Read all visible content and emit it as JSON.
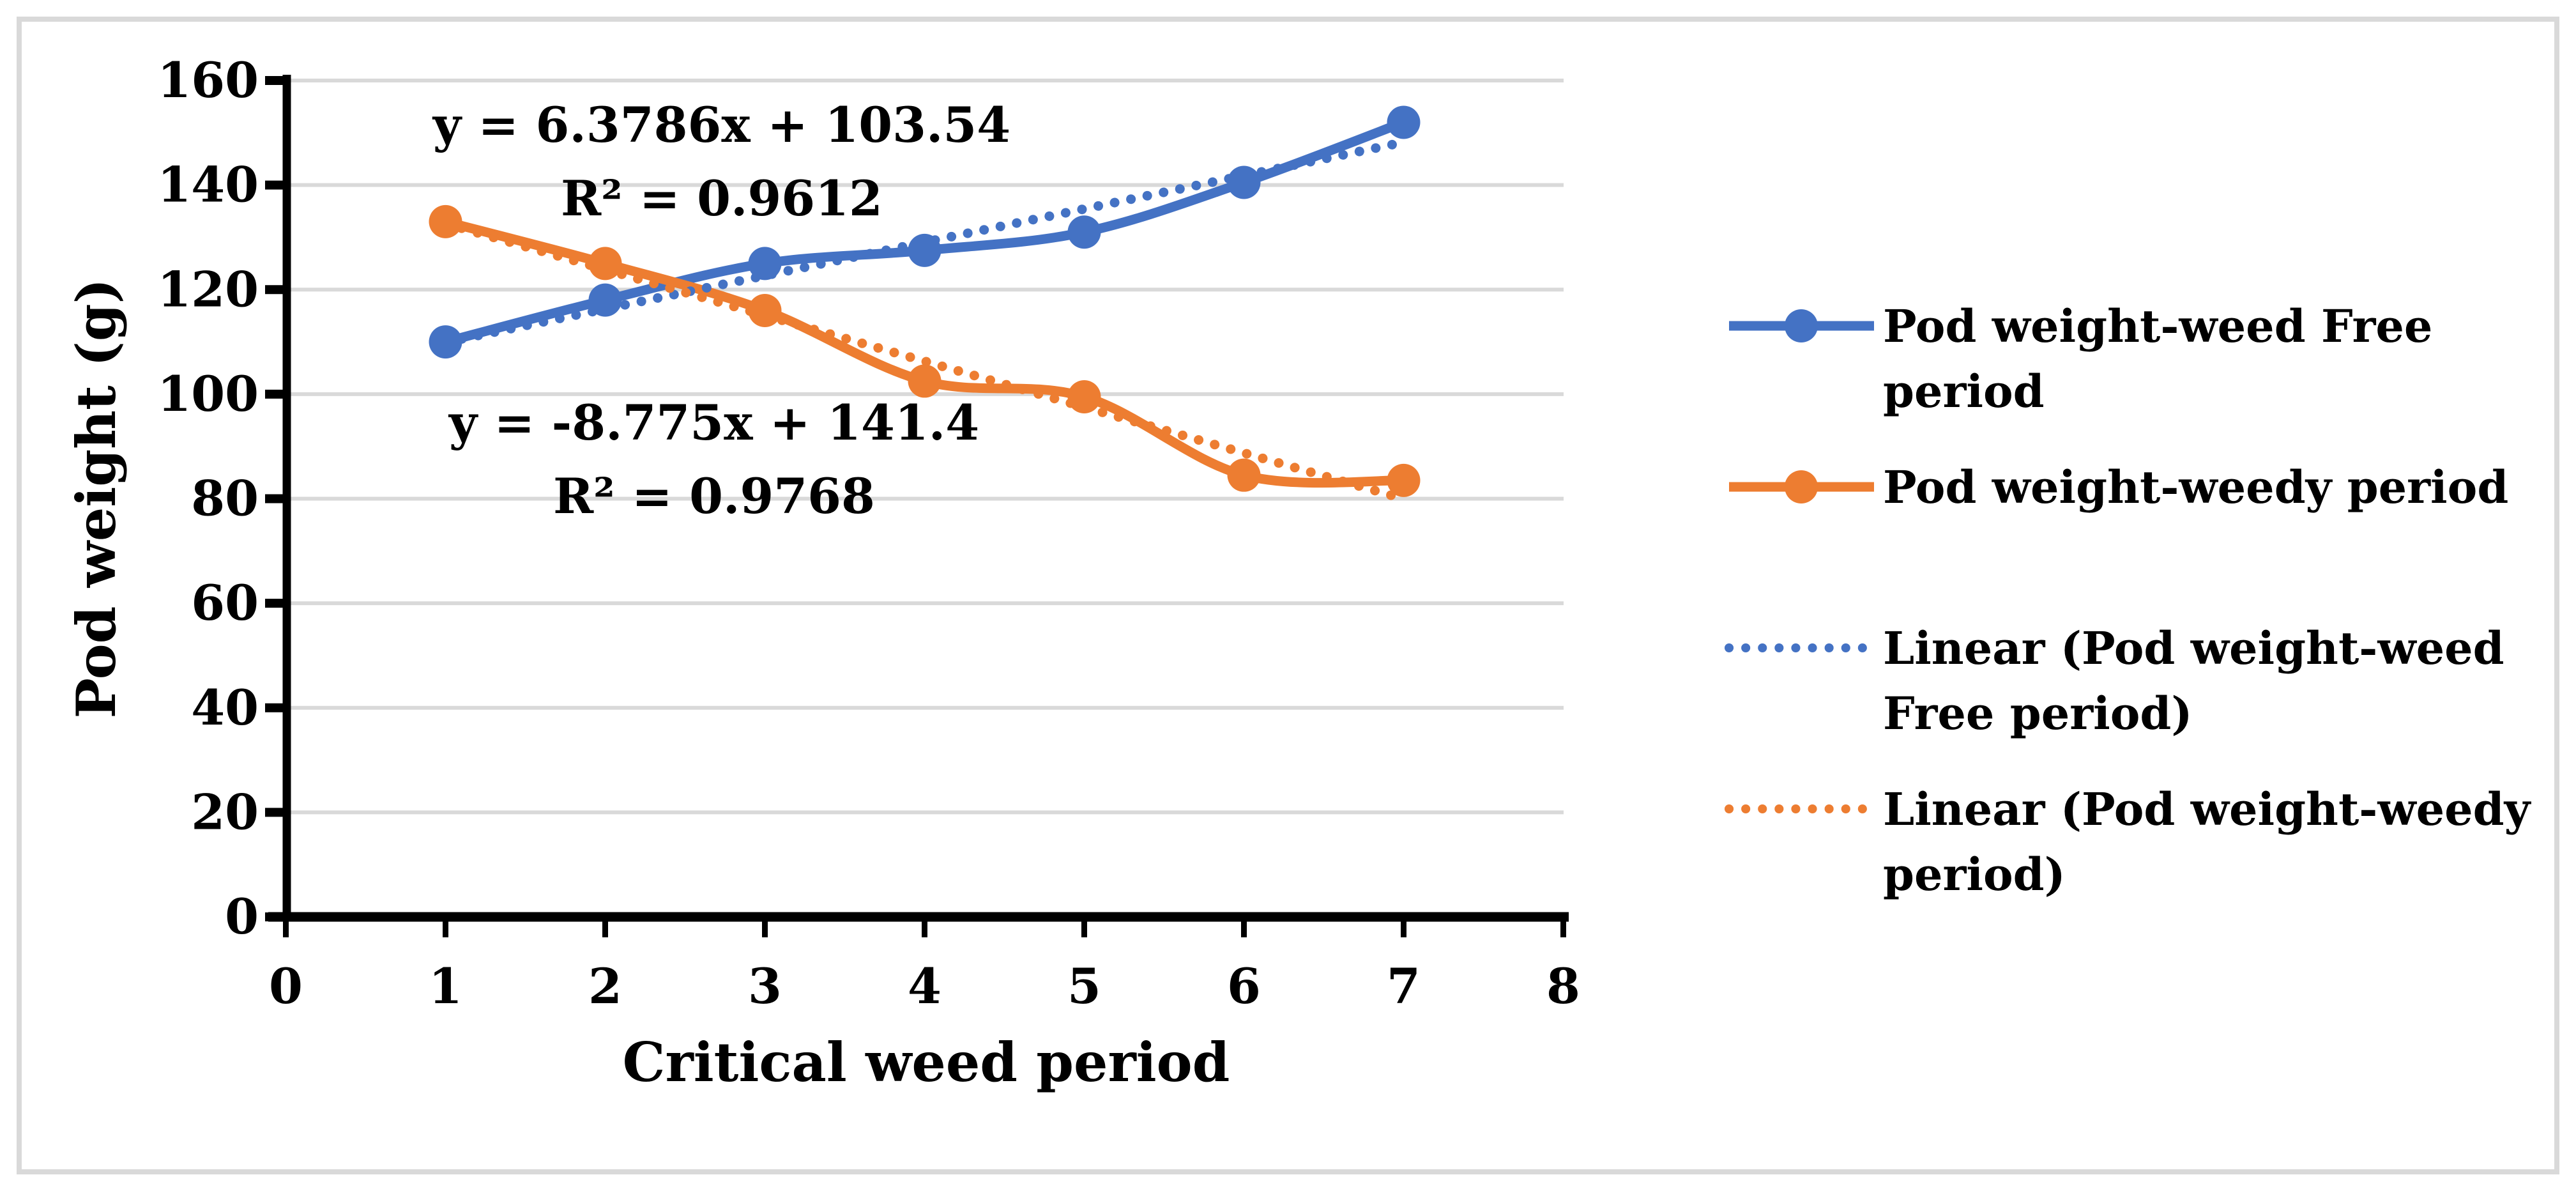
{
  "chart_data": {
    "type": "line",
    "title": "",
    "xlabel": "Critical weed period",
    "ylabel": "Pod weight (g)",
    "x": [
      1,
      2,
      3,
      4,
      5,
      6,
      7
    ],
    "xlim": [
      0,
      8
    ],
    "ylim": [
      0,
      160
    ],
    "x_ticks": [
      "0",
      "1",
      "2",
      "3",
      "4",
      "5",
      "6",
      "7",
      "8"
    ],
    "y_ticks": [
      "0",
      "20",
      "40",
      "60",
      "80",
      "100",
      "120",
      "140",
      "160"
    ],
    "grid": "horizontal",
    "legend_position": "right",
    "series": [
      {
        "name": "Pod weight-weed Free period",
        "color": "#4472C4",
        "line_style": "solid-smooth",
        "marker": "circle",
        "values": [
          110,
          118,
          125,
          127.5,
          131,
          140.5,
          152
        ]
      },
      {
        "name": "Pod weight-weedy period",
        "color": "#ED7D31",
        "line_style": "solid-smooth",
        "marker": "circle",
        "values": [
          133,
          125,
          116,
          102.5,
          99.5,
          84.5,
          83.5
        ]
      }
    ],
    "trendlines": [
      {
        "name": "Linear (Pod weight-weed Free period)",
        "color": "#4472C4",
        "slope": 6.3786,
        "intercept": 103.54,
        "r2": 0.9612,
        "x_range": [
          1,
          7
        ]
      },
      {
        "name": "Linear (Pod weight-weedy period)",
        "color": "#ED7D31",
        "slope": -8.775,
        "intercept": 141.4,
        "r2": 0.9768,
        "x_range": [
          1,
          7
        ]
      }
    ],
    "annotations": [
      {
        "lines": [
          "y = 6.3786x + 103.54",
          "R² = 0.9612"
        ],
        "anchor": "blue-trendline-label"
      },
      {
        "lines": [
          "y = -8.775x + 141.4",
          "R² = 0.9768"
        ],
        "anchor": "orange-trendline-label"
      }
    ],
    "legend": [
      {
        "label_lines": [
          "Pod weight-weed Free",
          "period"
        ],
        "color": "#4472C4",
        "line_style": "solid",
        "marker": "circle"
      },
      {
        "label_lines": [
          "Pod weight-weedy period"
        ],
        "color": "#ED7D31",
        "line_style": "solid",
        "marker": "circle"
      },
      {
        "label_lines": [
          "Linear (Pod weight-weed",
          "Free period)"
        ],
        "color": "#4472C4",
        "line_style": "dotted",
        "marker": "none"
      },
      {
        "label_lines": [
          "Linear (Pod weight-weedy",
          "period)"
        ],
        "color": "#ED7D31",
        "line_style": "dotted",
        "marker": "none"
      }
    ],
    "colors": {
      "background": "#FFFFFF",
      "border": "#D9D9D9",
      "grid": "#D9D9D9",
      "axis": "#000000",
      "text": "#000000",
      "series_blue": "#4472C4",
      "series_orange": "#ED7D31"
    }
  }
}
